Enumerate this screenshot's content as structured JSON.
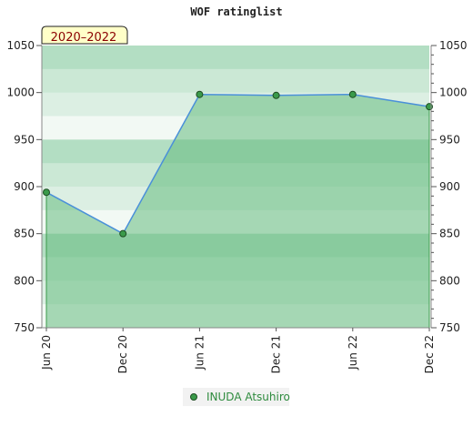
{
  "chart_data": {
    "type": "line",
    "title": "WOF ratinglist",
    "period_label": "2020–2022",
    "x_categories": [
      "Jun 20",
      "Dec 20",
      "Jun 21",
      "Dec 21",
      "Jun 22",
      "Dec 22"
    ],
    "ylim": [
      750,
      1050
    ],
    "y_ticks": [
      750,
      800,
      850,
      900,
      950,
      1000,
      1050
    ],
    "grid": false,
    "legend_position": "bottom-center",
    "series": [
      {
        "name": "INUDA Atsuhiro",
        "color": "#4a90d9",
        "fill_color": "#66bb80",
        "marker_color": "#3a9a4a",
        "points": [
          {
            "x": "Jun 20",
            "y": 894
          },
          {
            "x": "Dec 20",
            "y": 850
          },
          {
            "x": "Jun 21",
            "y": 998
          },
          {
            "x": "Dec 21",
            "y": 997
          },
          {
            "x": "Jun 22",
            "y": 998
          },
          {
            "x": "Dec 22",
            "y": 985
          }
        ]
      }
    ]
  }
}
